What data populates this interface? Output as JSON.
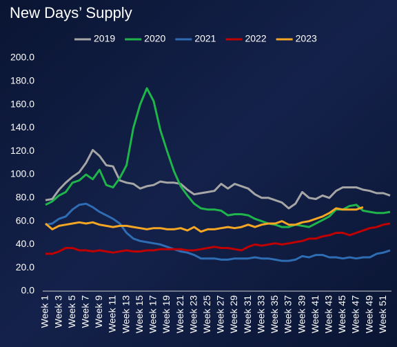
{
  "chart_data": {
    "type": "line",
    "title": "New Days’ Supply",
    "categories": [
      "Week 1",
      null,
      "Week 3",
      null,
      "Week 5",
      null,
      "Week 7",
      null,
      "Week 9",
      null,
      "Week 11",
      null,
      "Week 13",
      null,
      "Week 15",
      null,
      "Week 17",
      null,
      "Week 19",
      null,
      "Week 21",
      null,
      "Week 23",
      null,
      "Week 25",
      null,
      "Week 27",
      null,
      "Week 29",
      null,
      "Week 31",
      null,
      "Week 33",
      null,
      "Week 35",
      null,
      "Week 37",
      null,
      "Week 39",
      null,
      "Week 41",
      null,
      "Week 43",
      null,
      "Week 45",
      null,
      "Week 47",
      null,
      "Week 49",
      null,
      "Week 51",
      null
    ],
    "series": [
      {
        "name": "2019",
        "color": "#a6a6a6",
        "values": [
          78,
          79,
          87,
          93,
          98,
          102,
          110,
          121,
          116,
          108,
          107,
          95,
          93,
          92,
          88,
          90,
          91,
          94,
          93,
          93,
          92,
          87,
          83,
          84,
          85,
          86,
          92,
          88,
          92,
          90,
          88,
          83,
          80,
          80,
          78,
          76,
          71,
          75,
          85,
          80,
          79,
          82,
          80,
          86,
          89,
          89,
          89,
          87,
          86,
          84,
          84,
          82
        ]
      },
      {
        "name": "2020",
        "color": "#1fb54a",
        "values": [
          74,
          77,
          82,
          85,
          93,
          95,
          100,
          96,
          104,
          91,
          89,
          97,
          108,
          140,
          160,
          174,
          163,
          138,
          120,
          103,
          90,
          82,
          75,
          71,
          70,
          70,
          69,
          65,
          66,
          66,
          65,
          62,
          60,
          58,
          57,
          55,
          55,
          57,
          56,
          55,
          58,
          61,
          64,
          70,
          70,
          73,
          74,
          69,
          68,
          67,
          67,
          68
        ]
      },
      {
        "name": "2021",
        "color": "#2e6db4",
        "values": [
          57,
          58,
          62,
          64,
          70,
          74,
          75,
          72,
          68,
          65,
          62,
          58,
          50,
          45,
          43,
          42,
          41,
          40,
          38,
          36,
          34,
          33,
          31,
          28,
          28,
          28,
          27,
          27,
          28,
          28,
          28,
          29,
          28,
          28,
          27,
          26,
          26,
          27,
          30,
          29,
          31,
          31,
          29,
          29,
          28,
          29,
          28,
          29,
          29,
          32,
          33,
          35
        ]
      },
      {
        "name": "2022",
        "color": "#c00000",
        "values": [
          32,
          32,
          34,
          37,
          37,
          35,
          35,
          34,
          35,
          34,
          33,
          34,
          35,
          34,
          34,
          35,
          35,
          36,
          36,
          36,
          36,
          35,
          35,
          36,
          37,
          38,
          37,
          37,
          36,
          35,
          38,
          40,
          39,
          40,
          41,
          40,
          41,
          42,
          43,
          45,
          45,
          47,
          48,
          50,
          50,
          48,
          50,
          52,
          54,
          55,
          57,
          58
        ]
      },
      {
        "name": "2023",
        "color": "#f5a623",
        "values": [
          58,
          53,
          56,
          57,
          58,
          59,
          58,
          59,
          57,
          56,
          55,
          56,
          56,
          55,
          54,
          53,
          54,
          54,
          53,
          53,
          54,
          52,
          55,
          51,
          53,
          53,
          54,
          55,
          54,
          55,
          57,
          55,
          57,
          58,
          58,
          60,
          57,
          57,
          59,
          60,
          62,
          64,
          67,
          71,
          70,
          70,
          70,
          72,
          null,
          null,
          null,
          null
        ]
      }
    ],
    "ylim": [
      0,
      200
    ],
    "yticks": [
      {
        "value": 0,
        "label": "0.0"
      },
      {
        "value": 20,
        "label": "20.0"
      },
      {
        "value": 40,
        "label": "40.0"
      },
      {
        "value": 60,
        "label": "60.0"
      },
      {
        "value": 80,
        "label": "80.0"
      },
      {
        "value": 100,
        "label": "100.0"
      },
      {
        "value": 120,
        "label": "120.0"
      },
      {
        "value": 140,
        "label": "140.0"
      },
      {
        "value": 160,
        "label": "160.0"
      },
      {
        "value": 180,
        "label": "180.0"
      },
      {
        "value": 200,
        "label": "200.0"
      }
    ],
    "grid": false,
    "legend": "top"
  }
}
